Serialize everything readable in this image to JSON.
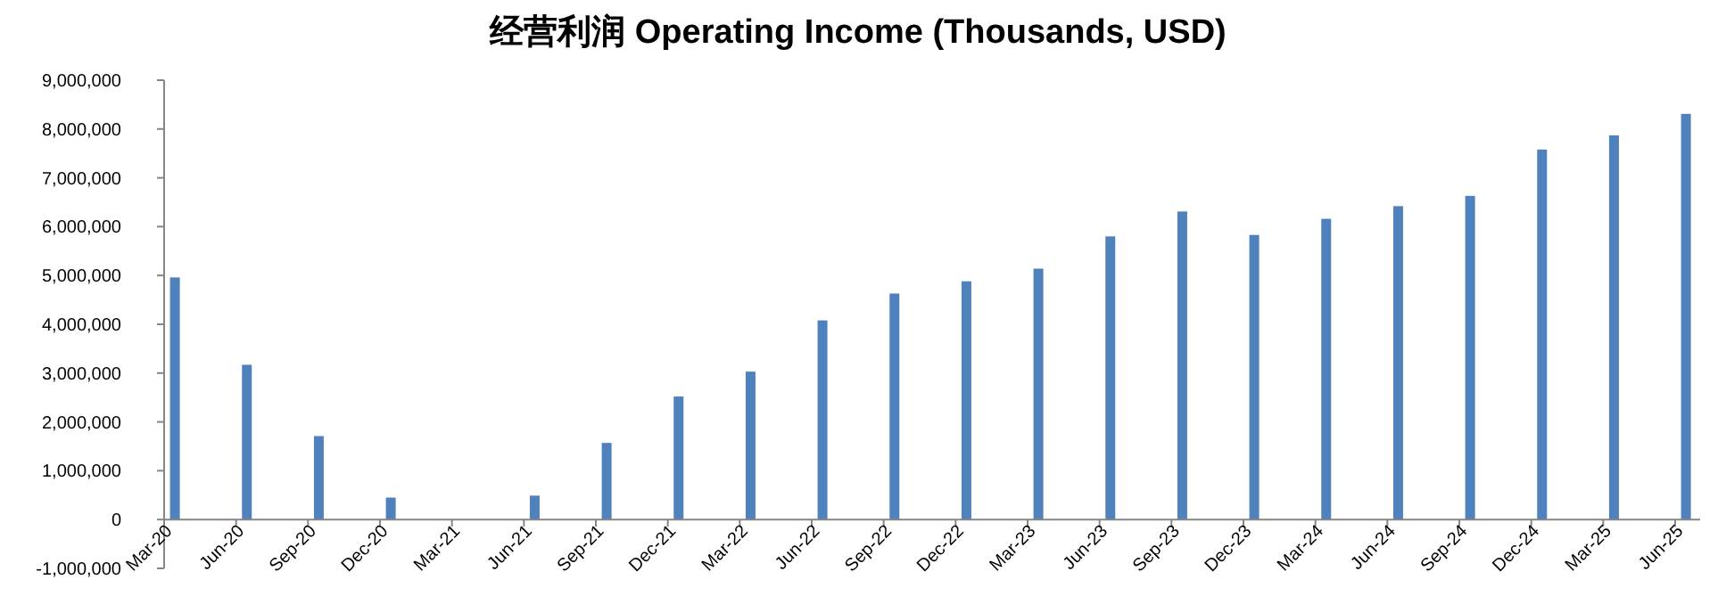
{
  "chart_data": {
    "type": "bar",
    "title": "经营利润 Operating Income (Thousands, USD)",
    "categories": [
      "Mar-20",
      "Jun-20",
      "Sep-20",
      "Dec-20",
      "Mar-21",
      "Jun-21",
      "Sep-21",
      "Dec-21",
      "Mar-22",
      "Jun-22",
      "Sep-22",
      "Dec-22",
      "Mar-23",
      "Jun-23",
      "Sep-23",
      "Dec-23",
      "Mar-24",
      "Jun-24",
      "Sep-24",
      "Dec-24",
      "Mar-25",
      "Jun-25"
    ],
    "values": [
      4960000,
      3170000,
      1710000,
      450000,
      null,
      490000,
      1570000,
      2520000,
      3030000,
      4080000,
      4630000,
      4880000,
      5140000,
      5800000,
      6310000,
      5830000,
      6160000,
      6420000,
      6630000,
      7580000,
      7870000,
      8310000
    ],
    "color": "#4f81bd",
    "ylim": [
      -1000000,
      9000000
    ],
    "yticks": [
      {
        "value": -1000000,
        "label": "-1,000,000"
      },
      {
        "value": 0,
        "label": "0"
      },
      {
        "value": 1000000,
        "label": "1,000,000"
      },
      {
        "value": 2000000,
        "label": "2,000,000"
      },
      {
        "value": 3000000,
        "label": "3,000,000"
      },
      {
        "value": 4000000,
        "label": "4,000,000"
      },
      {
        "value": 5000000,
        "label": "5,000,000"
      },
      {
        "value": 6000000,
        "label": "6,000,000"
      },
      {
        "value": 7000000,
        "label": "7,000,000"
      },
      {
        "value": 8000000,
        "label": "8,000,000"
      },
      {
        "value": 9000000,
        "label": "9,000,000"
      }
    ],
    "grid": false
  }
}
